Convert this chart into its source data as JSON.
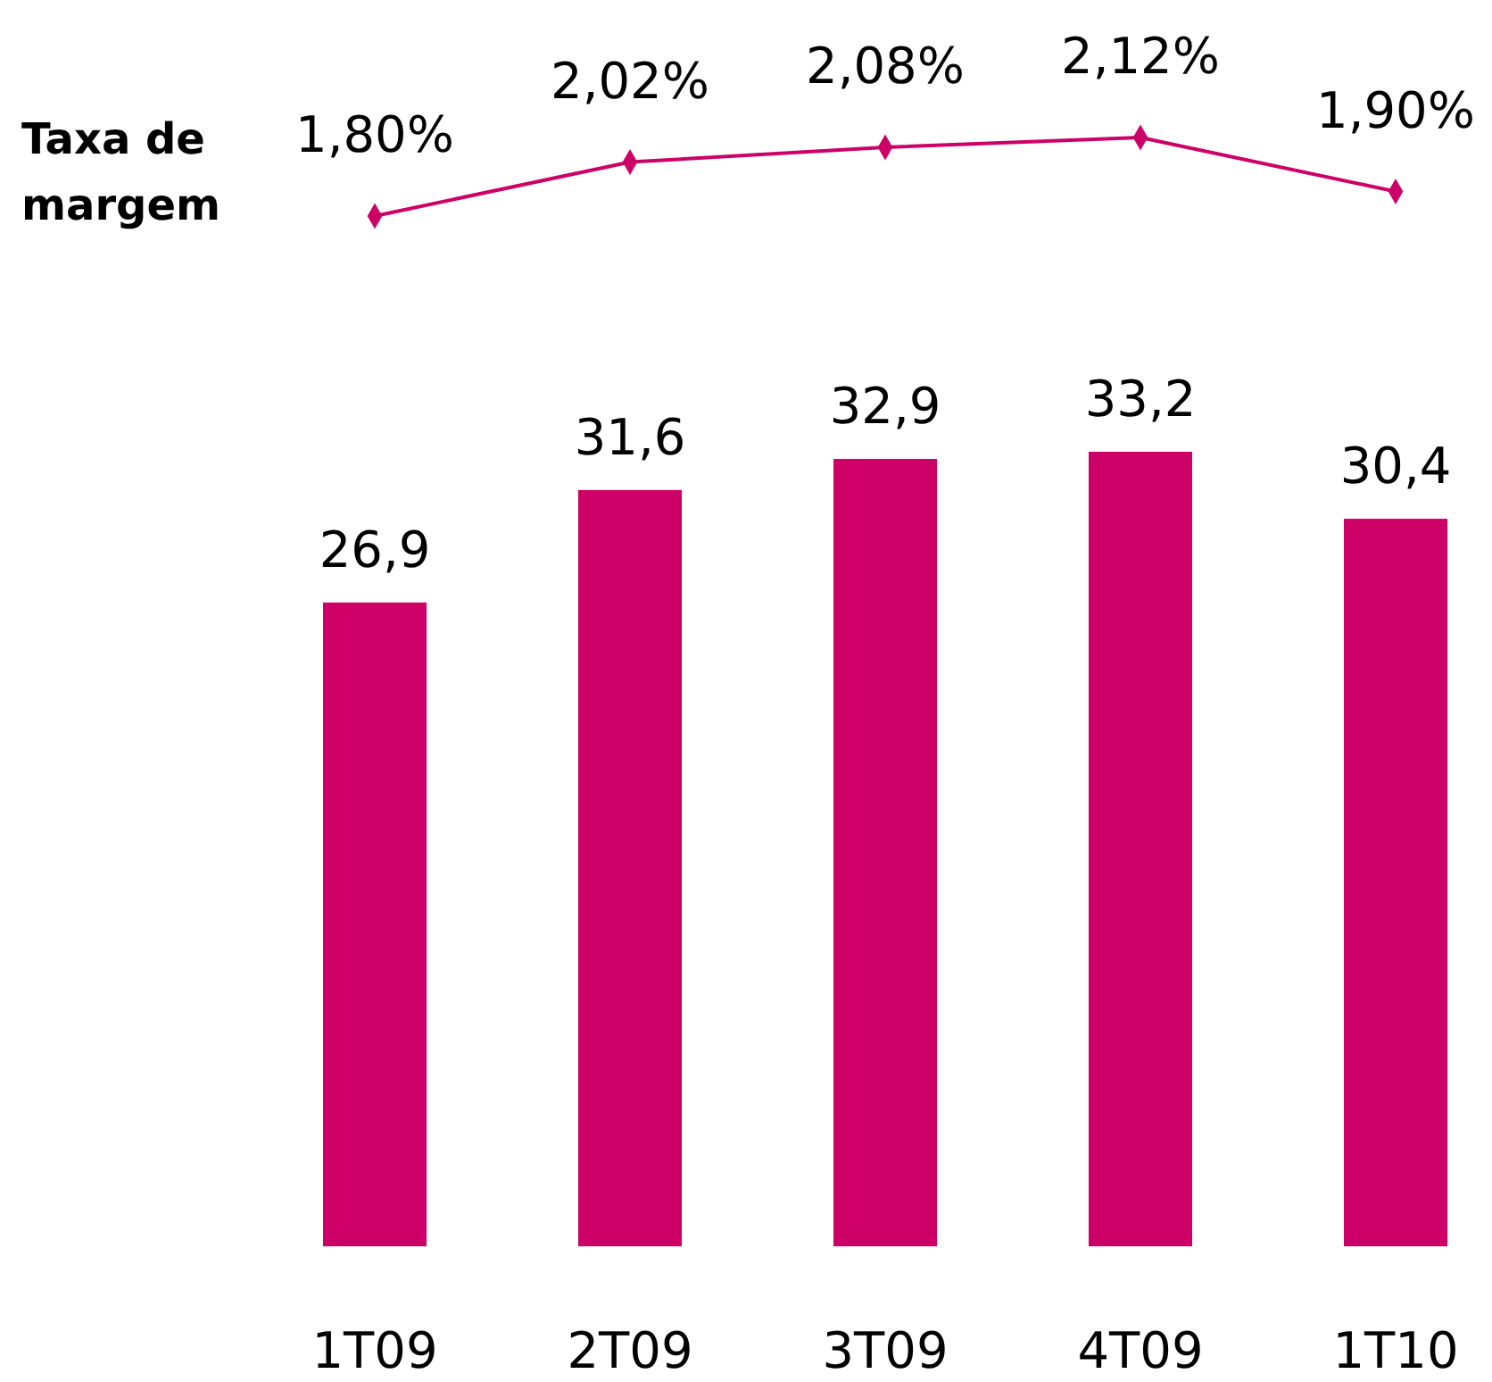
{
  "chart_data": [
    {
      "type": "line",
      "ylabel": "Taxa de margem",
      "marker": "diamond",
      "line_style": "solid",
      "series": [
        {
          "color": "#cc0066",
          "values": [
            1.8,
            2.02,
            2.08,
            2.12,
            1.9
          ],
          "value_labels": [
            "1,80%",
            "2,02%",
            "2,08%",
            "2,12%",
            "1,90%"
          ]
        }
      ]
    },
    {
      "type": "bar",
      "categories": [
        "1T09",
        "2T09",
        "3T09",
        "4T09",
        "1T10"
      ],
      "color": "#cc0066",
      "values": [
        26.9,
        31.6,
        32.9,
        33.2,
        30.4
      ],
      "value_labels": [
        "26,9",
        "31,6",
        "32,9",
        "33,2",
        "30,4"
      ]
    }
  ]
}
